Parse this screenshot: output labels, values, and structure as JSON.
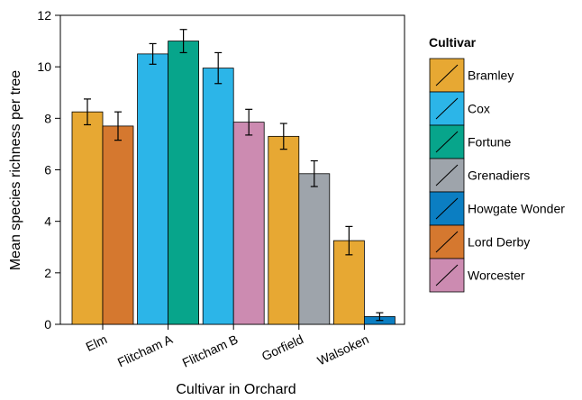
{
  "chart_data": {
    "type": "bar",
    "xlabel": "Cultivar in Orchard",
    "ylabel": "Mean species richness per tree",
    "ylim": [
      0,
      12
    ],
    "yticks": [
      0,
      2,
      4,
      6,
      8,
      10,
      12
    ],
    "grid": false,
    "legend_title": "Cultivar",
    "legend_position": "right",
    "legend": [
      {
        "name": "Bramley",
        "color": "#E7A833"
      },
      {
        "name": "Cox",
        "color": "#2CB5E8"
      },
      {
        "name": "Fortune",
        "color": "#07A58B"
      },
      {
        "name": "Grenadiers",
        "color": "#9EA4AB"
      },
      {
        "name": "Howgate Wonder",
        "color": "#0B7EC2"
      },
      {
        "name": "Lord Derby",
        "color": "#D5782F"
      },
      {
        "name": "Worcester",
        "color": "#CC8BB1"
      }
    ],
    "groups": [
      {
        "orchard": "Elm",
        "bars": [
          {
            "cultivar": "Bramley",
            "value": 8.25,
            "err": 0.5
          },
          {
            "cultivar": "Lord Derby",
            "value": 7.7,
            "err": 0.55
          }
        ]
      },
      {
        "orchard": "Flitcham A",
        "bars": [
          {
            "cultivar": "Cox",
            "value": 10.5,
            "err": 0.4
          },
          {
            "cultivar": "Fortune",
            "value": 11.0,
            "err": 0.45
          }
        ]
      },
      {
        "orchard": "Flitcham B",
        "bars": [
          {
            "cultivar": "Cox",
            "value": 9.95,
            "err": 0.6
          },
          {
            "cultivar": "Worcester",
            "value": 7.85,
            "err": 0.5
          }
        ]
      },
      {
        "orchard": "Gorfield",
        "bars": [
          {
            "cultivar": "Bramley",
            "value": 7.3,
            "err": 0.5
          },
          {
            "cultivar": "Grenadiers",
            "value": 5.85,
            "err": 0.5
          }
        ]
      },
      {
        "orchard": "Walsoken",
        "bars": [
          {
            "cultivar": "Bramley",
            "value": 3.25,
            "err": 0.55
          },
          {
            "cultivar": "Howgate Wonder",
            "value": 0.3,
            "err": 0.15
          }
        ]
      }
    ]
  }
}
